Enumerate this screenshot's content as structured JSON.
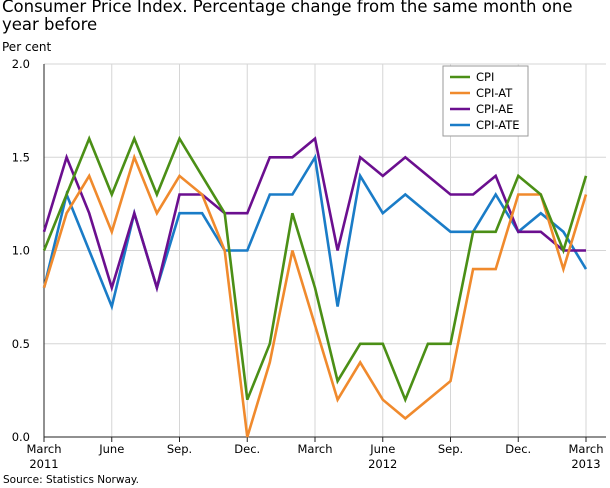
{
  "title": "Consumer Price Index. Percentage change from the same month one year before",
  "unit_label": "Per cent",
  "source": "Source: Statistics Norway.",
  "colors": {
    "CPI": "#4b8f16",
    "CPI-AT": "#f08a2d",
    "CPI-AE": "#6b0f8f",
    "CPI-ATE": "#1a7cc7",
    "grid": "#d6d6d6",
    "axis": "#222222"
  },
  "chart_data": {
    "type": "line",
    "x": [
      "2011-03",
      "2011-04",
      "2011-05",
      "2011-06",
      "2011-07",
      "2011-08",
      "2011-09",
      "2011-10",
      "2011-11",
      "2011-12",
      "2012-01",
      "2012-02",
      "2012-03",
      "2012-04",
      "2012-05",
      "2012-06",
      "2012-07",
      "2012-08",
      "2012-09",
      "2012-10",
      "2012-11",
      "2012-12",
      "2013-01",
      "2013-02",
      "2013-03"
    ],
    "x_tick_labels": [
      {
        "month": "March",
        "year": "2011",
        "index": 0
      },
      {
        "month": "June",
        "year": "",
        "index": 3
      },
      {
        "month": "Sep.",
        "year": "",
        "index": 6
      },
      {
        "month": "Dec.",
        "year": "",
        "index": 9
      },
      {
        "month": "March",
        "year": "",
        "index": 12
      },
      {
        "month": "June",
        "year": "2012",
        "index": 15
      },
      {
        "month": "Sep.",
        "year": "",
        "index": 18
      },
      {
        "month": "Dec.",
        "year": "",
        "index": 21
      },
      {
        "month": "March",
        "year": "2013",
        "index": 24
      }
    ],
    "y_ticks": [
      "0.0",
      "0.5",
      "1.0",
      "1.5",
      "2.0"
    ],
    "ylim": [
      0,
      2
    ],
    "grid": true,
    "legend_position": "top-right",
    "series": [
      {
        "name": "CPI",
        "values": [
          1.0,
          1.3,
          1.6,
          1.3,
          1.6,
          1.3,
          1.6,
          1.4,
          1.2,
          0.2,
          0.5,
          1.2,
          0.8,
          0.3,
          0.5,
          0.5,
          0.2,
          0.5,
          0.5,
          1.1,
          1.1,
          1.4,
          1.3,
          1.0,
          1.4
        ]
      },
      {
        "name": "CPI-AT",
        "values": [
          0.8,
          1.2,
          1.4,
          1.1,
          1.5,
          1.2,
          1.4,
          1.3,
          1.0,
          0.0,
          0.4,
          1.0,
          0.6,
          0.2,
          0.4,
          0.2,
          0.1,
          0.2,
          0.3,
          0.9,
          0.9,
          1.3,
          1.3,
          0.9,
          1.3
        ]
      },
      {
        "name": "CPI-AE",
        "values": [
          1.1,
          1.5,
          1.2,
          0.8,
          1.2,
          0.8,
          1.3,
          1.3,
          1.2,
          1.2,
          1.5,
          1.5,
          1.6,
          1.0,
          1.5,
          1.4,
          1.5,
          1.4,
          1.3,
          1.3,
          1.4,
          1.1,
          1.1,
          1.0,
          1.0
        ]
      },
      {
        "name": "CPI-ATE",
        "values": [
          0.8,
          1.3,
          1.0,
          0.7,
          1.2,
          0.8,
          1.2,
          1.2,
          1.0,
          1.0,
          1.3,
          1.3,
          1.5,
          0.7,
          1.4,
          1.2,
          1.3,
          1.2,
          1.1,
          1.1,
          1.3,
          1.1,
          1.2,
          1.1,
          0.9
        ]
      }
    ]
  }
}
